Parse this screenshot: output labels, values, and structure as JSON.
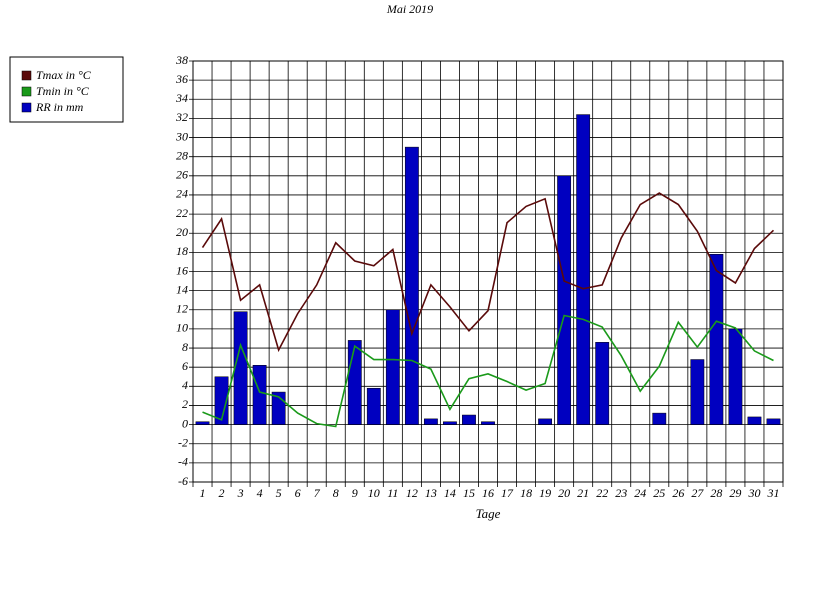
{
  "chart_data": {
    "type": "bar-line",
    "title": "Mai 2019",
    "x_label": "Tage",
    "categories": [
      "1",
      "2",
      "3",
      "4",
      "5",
      "6",
      "7",
      "8",
      "9",
      "10",
      "11",
      "12",
      "13",
      "14",
      "15",
      "16",
      "17",
      "18",
      "19",
      "20",
      "21",
      "22",
      "23",
      "24",
      "25",
      "26",
      "27",
      "28",
      "29",
      "30",
      "31"
    ],
    "series": [
      {
        "name": "Tmax in °C",
        "type": "line",
        "color": "#5a0a0a",
        "values": [
          18.5,
          21.5,
          13,
          14.6,
          7.8,
          11.6,
          14.6,
          19,
          17.1,
          16.6,
          18.3,
          9.5,
          14.6,
          12.3,
          9.8,
          11.9,
          21.1,
          22.8,
          23.6,
          15,
          14.2,
          14.6,
          19.5,
          23,
          24.2,
          23,
          20.2,
          16.1,
          14.8,
          18.4,
          20.3
        ]
      },
      {
        "name": "Tmin in °C",
        "type": "line",
        "color": "#1a9a1a",
        "values": [
          1.3,
          0.5,
          8.3,
          3.4,
          2.9,
          1.2,
          0.1,
          -0.2,
          8.2,
          6.8,
          6.8,
          6.7,
          5.8,
          1.6,
          4.8,
          5.3,
          4.5,
          3.6,
          4.3,
          11.4,
          11,
          10.2,
          7.2,
          3.5,
          6.1,
          10.7,
          8.1,
          10.8,
          10.1,
          7.7,
          6.7
        ]
      },
      {
        "name": "RR in mm",
        "type": "bar",
        "color": "#0000c0",
        "values": [
          0.3,
          5,
          11.8,
          6.2,
          3.4,
          0,
          0,
          0,
          8.8,
          3.8,
          12,
          29,
          0.6,
          0.3,
          1,
          0.3,
          0,
          0,
          0.6,
          26,
          32.4,
          8.6,
          0,
          0,
          1.2,
          0,
          6.8,
          17.8,
          10,
          0.8,
          0.6
        ]
      }
    ],
    "ylim": [
      -6,
      38
    ],
    "yticks": [
      -6,
      -4,
      -2,
      0,
      2,
      4,
      6,
      8,
      10,
      12,
      14,
      16,
      18,
      20,
      22,
      24,
      26,
      28,
      30,
      32,
      34,
      36,
      38
    ],
    "grid": true
  }
}
